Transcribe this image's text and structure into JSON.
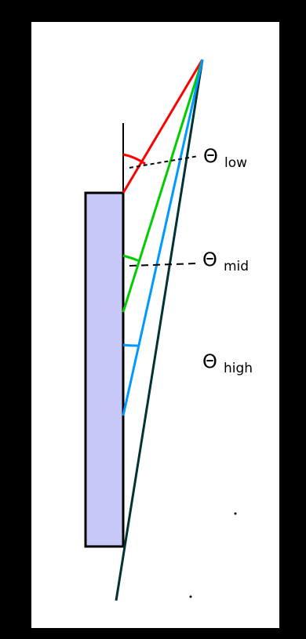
{
  "labels": {
    "theta_symbol": "Θ",
    "low": "low",
    "mid": "mid",
    "high": "high"
  },
  "colors": {
    "background": "#000000",
    "panel": "#ffffff",
    "block_fill": "#c8c8f8",
    "ray_low": "#ff0000",
    "ray_mid": "#00cc00",
    "ray_high": "#0099ff",
    "ray_extended": "#003333",
    "angle_low": "#ff0000",
    "angle_mid": "#00cc00",
    "angle_high": "#0099ff"
  }
}
